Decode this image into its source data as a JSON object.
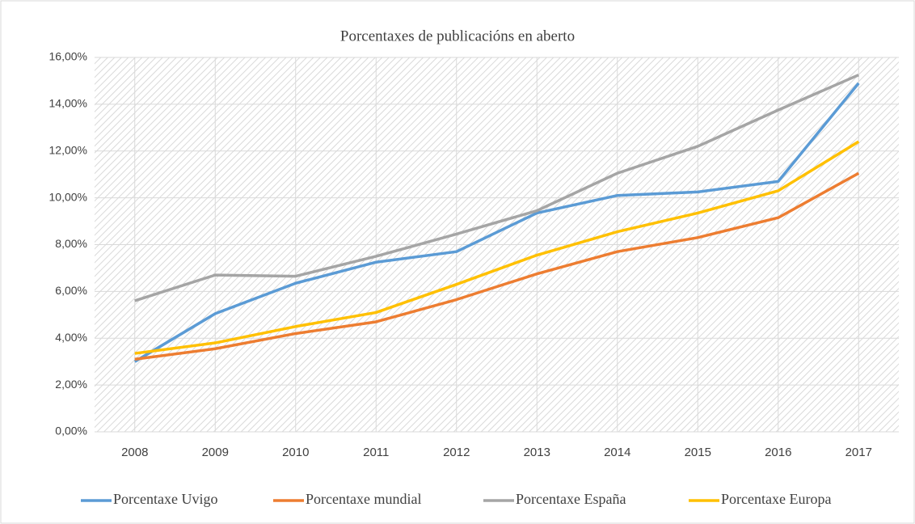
{
  "chart_data": {
    "type": "line",
    "title": "Porcentaxes de publicacións en aberto",
    "categories": [
      "2008",
      "2009",
      "2010",
      "2011",
      "2012",
      "2013",
      "2014",
      "2015",
      "2016",
      "2017"
    ],
    "series": [
      {
        "name": "Porcentaxe Uvigo",
        "color": "#5b9bd5",
        "values": [
          3.0,
          5.05,
          6.35,
          7.25,
          7.7,
          9.35,
          10.1,
          10.25,
          10.7,
          14.9
        ]
      },
      {
        "name": "Porcentaxe mundial",
        "color": "#ed7d31",
        "values": [
          3.1,
          3.55,
          4.2,
          4.7,
          5.65,
          6.75,
          7.7,
          8.3,
          9.15,
          11.05
        ]
      },
      {
        "name": "Porcentaxe España",
        "color": "#a5a5a5",
        "values": [
          5.6,
          6.7,
          6.65,
          7.5,
          8.45,
          9.45,
          11.05,
          12.2,
          13.75,
          15.25
        ]
      },
      {
        "name": "Porcentaxe Europa",
        "color": "#ffc000",
        "values": [
          3.35,
          3.8,
          4.5,
          5.1,
          6.3,
          7.55,
          8.55,
          9.35,
          10.3,
          12.4
        ]
      }
    ],
    "ylim": [
      0,
      16
    ],
    "yticks": [
      {
        "value": 0,
        "label": "0,00%"
      },
      {
        "value": 2,
        "label": "2,00%"
      },
      {
        "value": 4,
        "label": "4,00%"
      },
      {
        "value": 6,
        "label": "6,00%"
      },
      {
        "value": 8,
        "label": "8,00%"
      },
      {
        "value": 10,
        "label": "10,00%"
      },
      {
        "value": 12,
        "label": "12,00%"
      },
      {
        "value": 14,
        "label": "14,00%"
      },
      {
        "value": 16,
        "label": "16,00%"
      }
    ],
    "grid": true,
    "legend": "bottom"
  }
}
